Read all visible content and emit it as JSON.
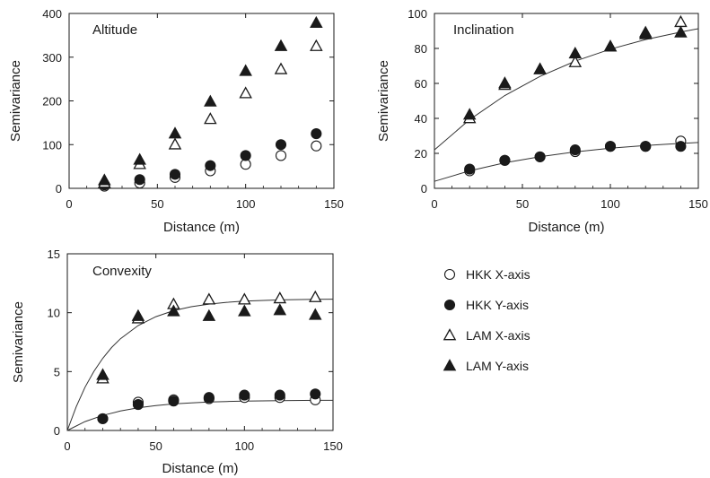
{
  "chart_data": [
    {
      "type": "scatter",
      "title": "Altitude",
      "xlabel": "Distance (m)",
      "ylabel": "Semivariance",
      "xlim": [
        0,
        150
      ],
      "ylim": [
        0,
        400
      ],
      "xticks": [
        "0",
        "50",
        "100",
        "150"
      ],
      "yticks": [
        "0",
        "100",
        "200",
        "300",
        "400"
      ],
      "series": [
        {
          "name": "HKK X-axis",
          "x": [
            20,
            40,
            60,
            80,
            100,
            120,
            140
          ],
          "y": [
            5,
            12,
            25,
            40,
            55,
            75,
            97
          ]
        },
        {
          "name": "HKK Y-axis",
          "x": [
            20,
            40,
            60,
            80,
            100,
            120,
            140
          ],
          "y": [
            8,
            20,
            32,
            52,
            75,
            100,
            125
          ]
        },
        {
          "name": "LAM X-axis",
          "x": [
            20,
            40,
            60,
            80,
            100,
            120,
            140
          ],
          "y": [
            12,
            55,
            100,
            158,
            217,
            272,
            325
          ]
        },
        {
          "name": "LAM Y-axis",
          "x": [
            20,
            40,
            60,
            80,
            100,
            120,
            140
          ],
          "y": [
            18,
            65,
            125,
            198,
            268,
            325,
            378
          ]
        }
      ],
      "fits": []
    },
    {
      "type": "scatter",
      "title": "Inclination",
      "xlabel": "Distance (m)",
      "ylabel": "Semivariance",
      "xlim": [
        0,
        150
      ],
      "ylim": [
        0,
        100
      ],
      "xticks": [
        "0",
        "50",
        "100",
        "150"
      ],
      "yticks": [
        "0",
        "20",
        "40",
        "60",
        "80",
        "100"
      ],
      "series": [
        {
          "name": "HKK X-axis",
          "x": [
            20,
            40,
            60,
            80,
            100,
            120,
            140
          ],
          "y": [
            10,
            16,
            18,
            21,
            24,
            24,
            27
          ]
        },
        {
          "name": "HKK Y-axis",
          "x": [
            20,
            40,
            60,
            80,
            100,
            120,
            140
          ],
          "y": [
            11,
            16,
            18,
            22,
            24,
            24,
            24
          ]
        },
        {
          "name": "LAM X-axis",
          "x": [
            20,
            40,
            60,
            80,
            100,
            120,
            140
          ],
          "y": [
            40,
            59,
            68,
            72,
            81,
            89,
            95
          ]
        },
        {
          "name": "LAM Y-axis",
          "x": [
            20,
            40,
            60,
            80,
            100,
            120,
            140
          ],
          "y": [
            42,
            60,
            68,
            77,
            81,
            88,
            89
          ]
        }
      ],
      "fits": [
        {
          "x": [
            0,
            20,
            40,
            60,
            80,
            100,
            120,
            140,
            150
          ],
          "y": [
            22,
            39.3,
            53.1,
            64.0,
            72.7,
            79.6,
            85.1,
            89.4,
            91.3
          ]
        },
        {
          "x": [
            0,
            20,
            40,
            60,
            80,
            100,
            120,
            140,
            150
          ],
          "y": [
            4,
            10.0,
            14.6,
            18.1,
            20.8,
            22.9,
            24.5,
            25.7,
            26.2
          ]
        }
      ]
    },
    {
      "type": "scatter",
      "title": "Convexity",
      "xlabel": "Distance (m)",
      "ylabel": "Semivariance",
      "xlim": [
        0,
        150
      ],
      "ylim": [
        0,
        15
      ],
      "xticks": [
        "0",
        "50",
        "100",
        "150"
      ],
      "yticks": [
        "0",
        "5",
        "10",
        "15"
      ],
      "series": [
        {
          "name": "HKK X-axis",
          "x": [
            20,
            40,
            60,
            80,
            100,
            120,
            140
          ],
          "y": [
            1.0,
            2.4,
            2.6,
            2.7,
            2.8,
            2.8,
            2.6
          ]
        },
        {
          "name": "HKK Y-axis",
          "x": [
            20,
            40,
            60,
            80,
            100,
            120,
            140
          ],
          "y": [
            1.0,
            2.2,
            2.5,
            2.8,
            3.0,
            3.0,
            3.1
          ]
        },
        {
          "name": "LAM X-axis",
          "x": [
            20,
            40,
            60,
            80,
            100,
            120,
            140
          ],
          "y": [
            4.4,
            9.5,
            10.7,
            11.1,
            11.1,
            11.2,
            11.3
          ]
        },
        {
          "name": "LAM Y-axis",
          "x": [
            20,
            40,
            60,
            80,
            100,
            120,
            140
          ],
          "y": [
            4.7,
            9.7,
            10.1,
            9.7,
            10.1,
            10.2,
            9.8
          ]
        }
      ],
      "fits": [
        {
          "x": [
            0,
            5,
            10,
            15,
            20,
            25,
            30,
            40,
            50,
            60,
            70,
            80,
            90,
            100,
            120,
            140,
            150
          ],
          "y": [
            0,
            2.01,
            3.67,
            5.02,
            6.13,
            7.04,
            7.79,
            8.91,
            9.66,
            10.17,
            10.51,
            10.73,
            10.88,
            10.98,
            11.09,
            11.14,
            11.15
          ]
        },
        {
          "x": [
            0,
            10,
            20,
            30,
            40,
            50,
            60,
            70,
            80,
            90,
            100,
            120,
            140,
            150
          ],
          "y": [
            0,
            0.75,
            1.28,
            1.65,
            1.92,
            2.11,
            2.25,
            2.34,
            2.41,
            2.46,
            2.49,
            2.53,
            2.56,
            2.56
          ]
        }
      ]
    }
  ],
  "legend": {
    "items": [
      {
        "label": "HKK X-axis",
        "marker": "open-circle"
      },
      {
        "label": "HKK Y-axis",
        "marker": "filled-circle"
      },
      {
        "label": "LAM X-axis",
        "marker": "open-triangle"
      },
      {
        "label": "LAM Y-axis",
        "marker": "filled-triangle"
      }
    ]
  }
}
